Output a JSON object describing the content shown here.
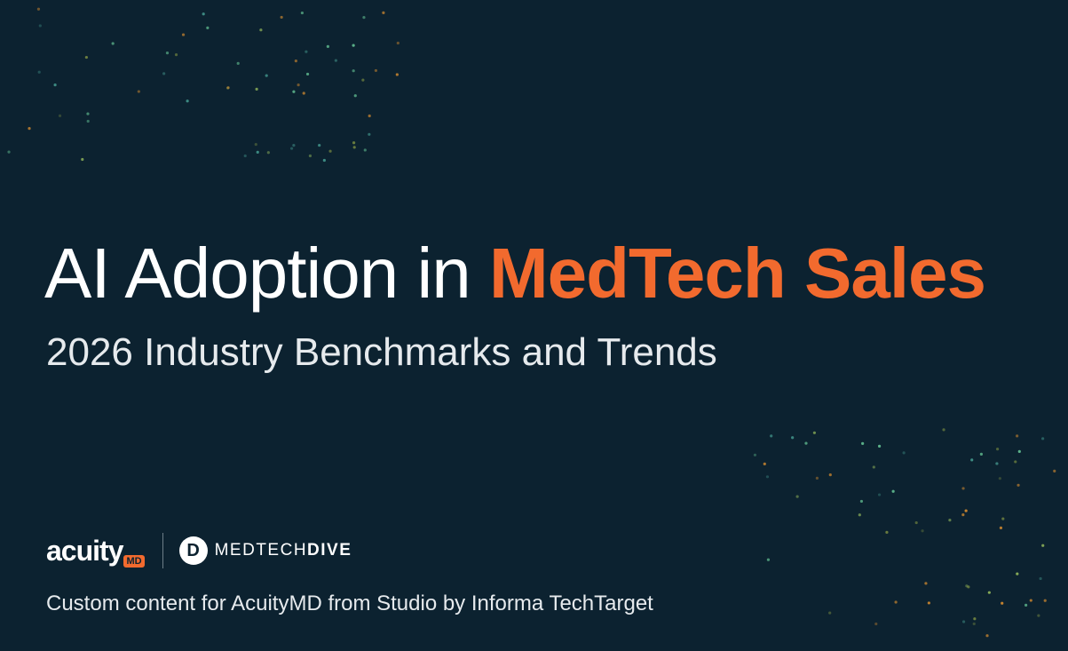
{
  "cover": {
    "title": {
      "plain": "AI Adoption in",
      "highlight": "MedTech Sales"
    },
    "subtitle": "2026 Industry Benchmarks and Trends",
    "logos": {
      "acuity": {
        "word": "acuity",
        "badge": "MD"
      },
      "medtechdive": {
        "icon": "D",
        "first": "MEDTECH",
        "second": "DIVE"
      }
    },
    "footer": "Custom content for AcuityMD from Studio by Informa TechTarget"
  }
}
